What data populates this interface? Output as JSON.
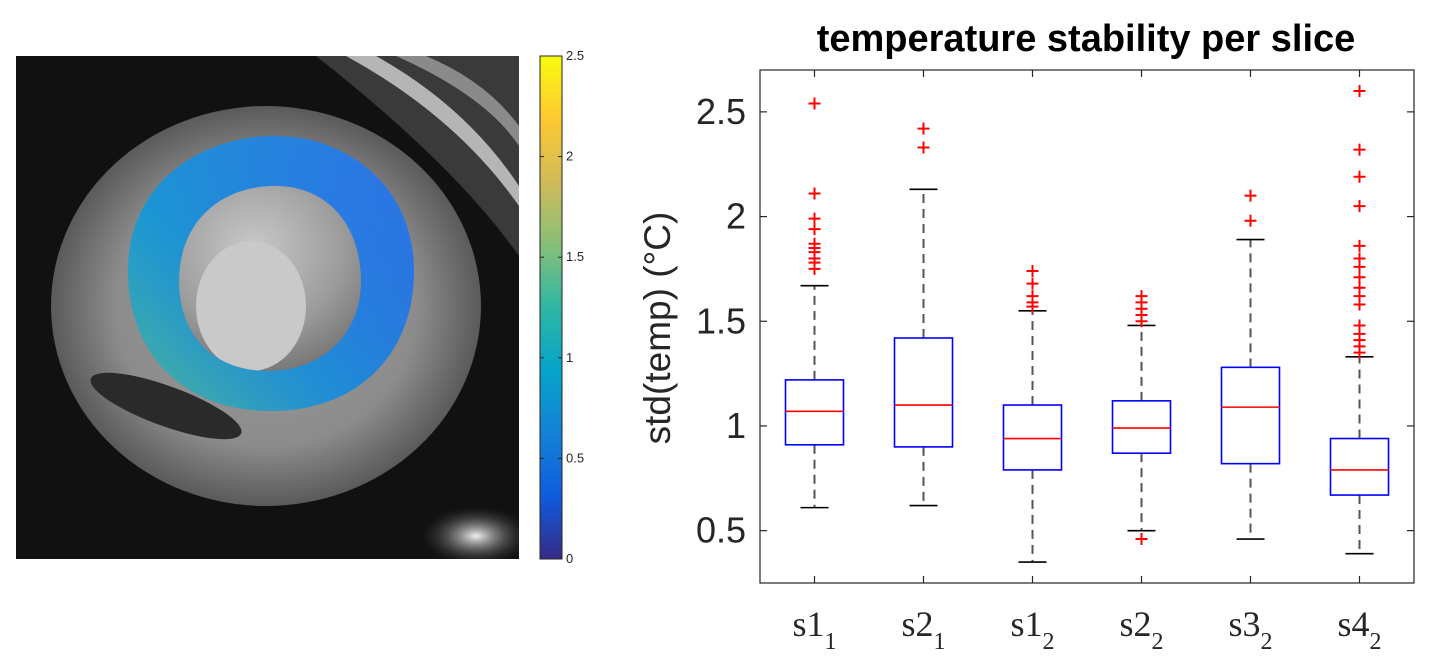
{
  "colorbar": {
    "ticks": [
      "0",
      "0.5",
      "1",
      "1.5",
      "2",
      "2.5"
    ],
    "range": [
      0,
      2.5
    ],
    "colors": [
      "#352a87",
      "#0f5cdd",
      "#1481d6",
      "#06a4ca",
      "#2eb7a4",
      "#87bf77",
      "#d1bb59",
      "#fec832",
      "#f9fb0e"
    ]
  },
  "chart_data": {
    "type": "box",
    "title": "temperature stability per slice",
    "ylabel": "std(temp) (°C)",
    "ylim": [
      0.25,
      2.7
    ],
    "yticks": [
      0.5,
      1,
      1.5,
      2,
      2.5
    ],
    "ytick_labels": [
      "0.5",
      "1",
      "1.5",
      "2",
      "2.5"
    ],
    "categories": [
      {
        "base": "s1",
        "sub": "1"
      },
      {
        "base": "s2",
        "sub": "1"
      },
      {
        "base": "s1",
        "sub": "2"
      },
      {
        "base": "s2",
        "sub": "2"
      },
      {
        "base": "s3",
        "sub": "2"
      },
      {
        "base": "s4",
        "sub": "2"
      }
    ],
    "boxes": [
      {
        "whisker_low": 0.61,
        "q1": 0.91,
        "median": 1.07,
        "q3": 1.22,
        "whisker_high": 1.67,
        "outliers": [
          1.75,
          1.78,
          1.8,
          1.83,
          1.85,
          1.87,
          1.94,
          1.99,
          2.11,
          2.54
        ]
      },
      {
        "whisker_low": 0.62,
        "q1": 0.9,
        "median": 1.1,
        "q3": 1.42,
        "whisker_high": 2.13,
        "outliers": [
          2.33,
          2.42
        ]
      },
      {
        "whisker_low": 0.35,
        "q1": 0.79,
        "median": 0.94,
        "q3": 1.1,
        "whisker_high": 1.55,
        "outliers": [
          1.57,
          1.59,
          1.62,
          1.68,
          1.74
        ]
      },
      {
        "whisker_low": 0.5,
        "q1": 0.87,
        "median": 0.99,
        "q3": 1.12,
        "whisker_high": 1.48,
        "outliers": [
          0.46,
          1.5,
          1.53,
          1.56,
          1.59,
          1.62
        ]
      },
      {
        "whisker_low": 0.46,
        "q1": 0.82,
        "median": 1.09,
        "q3": 1.28,
        "whisker_high": 1.89,
        "outliers": [
          1.98,
          2.1
        ]
      },
      {
        "whisker_low": 0.39,
        "q1": 0.67,
        "median": 0.79,
        "q3": 0.94,
        "whisker_high": 1.33,
        "outliers": [
          1.35,
          1.38,
          1.41,
          1.44,
          1.48,
          1.58,
          1.62,
          1.66,
          1.71,
          1.76,
          1.8,
          1.86,
          2.05,
          2.19,
          2.32,
          2.6
        ]
      }
    ],
    "box_color": "#0000ff",
    "median_color": "#ff0000",
    "outlier_color": "#ff0000",
    "whisker_color": "#000000",
    "grid": false
  }
}
